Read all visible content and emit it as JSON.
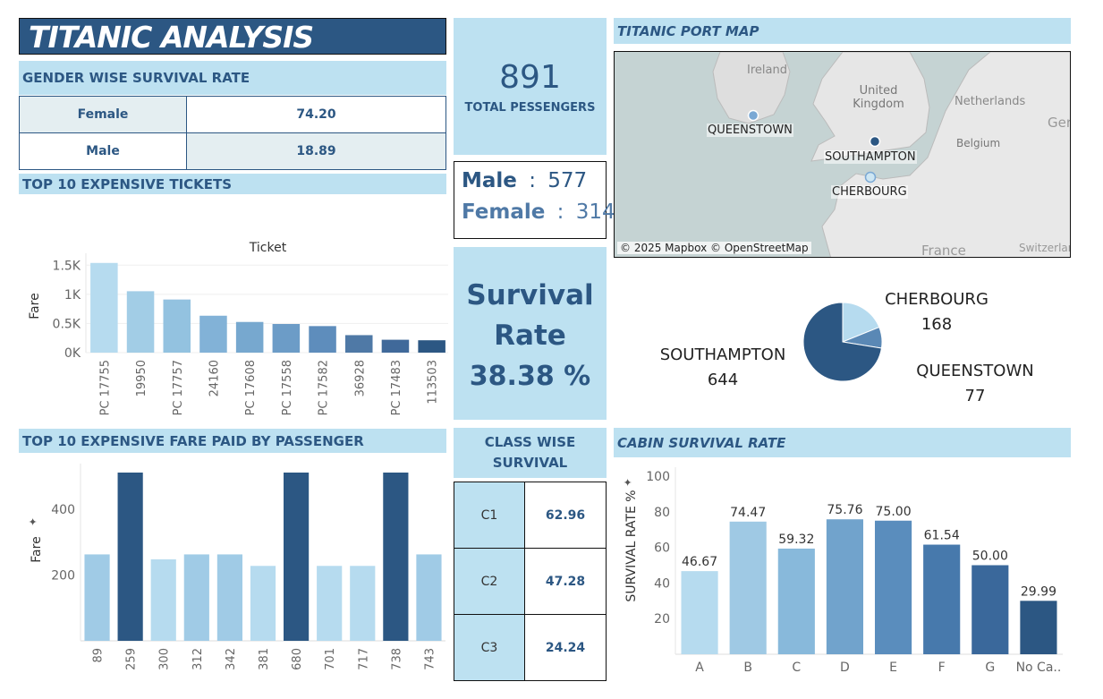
{
  "title": "TITANIC ANALYSIS",
  "gender_section": {
    "title": "GENDER WISE SURVIVAL RATE",
    "rows": [
      {
        "label": "Female",
        "value": "74.20"
      },
      {
        "label": "Male",
        "value": "18.89"
      }
    ]
  },
  "total": {
    "value": "891",
    "label": "TOTAL PESSENGERS"
  },
  "counts": {
    "male_label": "Male",
    "male_value": "577",
    "female_label": "Female",
    "female_value": "314",
    "sep": ":"
  },
  "survival": {
    "line1": "Survival",
    "line2": "Rate",
    "value": "38.38 %"
  },
  "map": {
    "title": "TITANIC PORT MAP",
    "labels": [
      "Ireland",
      "United Kingdom",
      "Netherlands",
      "Belgium",
      "Ger",
      "France",
      "Switzerland"
    ],
    "ports": [
      "QUEENSTOWN",
      "SOUTHAMPTON",
      "CHERBOURG"
    ],
    "credit": "© 2025 Mapbox © OpenStreetMap"
  },
  "class_section": {
    "title_line1": "CLASS WISE",
    "title_line2": "SURVIVAL",
    "rows": [
      {
        "label": "C1",
        "value": "62.96"
      },
      {
        "label": "C2",
        "value": "47.28"
      },
      {
        "label": "C3",
        "value": "24.24"
      }
    ]
  },
  "colors": {
    "dark_blue": "#2c5783",
    "header_bg": "#bde1f1",
    "light_blue": "#b6dbef",
    "cell_gray": "#e4eef1"
  },
  "chart_data": [
    {
      "id": "tickets",
      "type": "bar",
      "section_title": "TOP 10 EXPENSIVE TICKETS",
      "title": "Ticket",
      "ylabel": "Fare",
      "categories": [
        "PC 17755",
        "19950",
        "PC 17757",
        "24160",
        "PC 17608",
        "PC 17558",
        "PC 17582",
        "36928",
        "PC 17483",
        "113503"
      ],
      "values": [
        1538,
        1053,
        911,
        633,
        526,
        491,
        455,
        300,
        221,
        212
      ],
      "yticks": [
        0,
        500,
        1000,
        1500
      ],
      "ytick_labels": [
        "0K",
        "0.5K",
        "1K",
        "1.5K"
      ],
      "ylim": [
        0,
        1550
      ],
      "colors": [
        "#b6dbef",
        "#a2cde6",
        "#93c2e0",
        "#82b2d7",
        "#77a8cf",
        "#6c9cc7",
        "#5e8dbc",
        "#4f79a6",
        "#40699a",
        "#2c5783"
      ]
    },
    {
      "id": "fare",
      "type": "bar",
      "section_title": "TOP 10 EXPENSIVE FARE PAID BY PASSENGER",
      "ylabel": "Fare",
      "categories": [
        "89",
        "259",
        "300",
        "312",
        "342",
        "381",
        "680",
        "701",
        "717",
        "738",
        "743"
      ],
      "values": [
        263,
        512,
        248,
        263,
        263,
        228,
        512,
        228,
        228,
        512,
        263
      ],
      "yticks": [
        200,
        400
      ],
      "ylim": [
        0,
        512
      ],
      "colors": [
        "#a0cbe6",
        "#2c5783",
        "#b6dbef",
        "#a0cbe6",
        "#a0cbe6",
        "#b6dbef",
        "#2c5783",
        "#b6dbef",
        "#b6dbef",
        "#2c5783",
        "#a0cbe6"
      ]
    },
    {
      "id": "ports",
      "type": "pie",
      "categories": [
        "CHERBOURG",
        "QUEENSTOWN",
        "SOUTHAMPTON"
      ],
      "values": [
        168,
        77,
        644
      ],
      "value_labels": [
        "168",
        "77",
        "644"
      ],
      "colors": [
        "#b6dbef",
        "#5a88b5",
        "#2c5783"
      ]
    },
    {
      "id": "cabin",
      "type": "bar",
      "section_title": "CABIN SURVIVAL RATE",
      "ylabel": "SURVIVAL RATE %",
      "categories": [
        "A",
        "B",
        "C",
        "D",
        "E",
        "F",
        "G",
        "No Ca.."
      ],
      "values": [
        46.67,
        74.47,
        59.32,
        75.76,
        75.0,
        61.54,
        50.0,
        29.99
      ],
      "value_labels": [
        "46.67",
        "74.47",
        "59.32",
        "75.76",
        "75.00",
        "61.54",
        "50.00",
        "29.99"
      ],
      "yticks": [
        20,
        40,
        60,
        80,
        100
      ],
      "ylim": [
        0,
        100
      ],
      "colors": [
        "#b6dbef",
        "#9fc9e4",
        "#88b9db",
        "#71a3cc",
        "#5a8dbd",
        "#4779ac",
        "#3a689b",
        "#2c5783"
      ]
    }
  ]
}
